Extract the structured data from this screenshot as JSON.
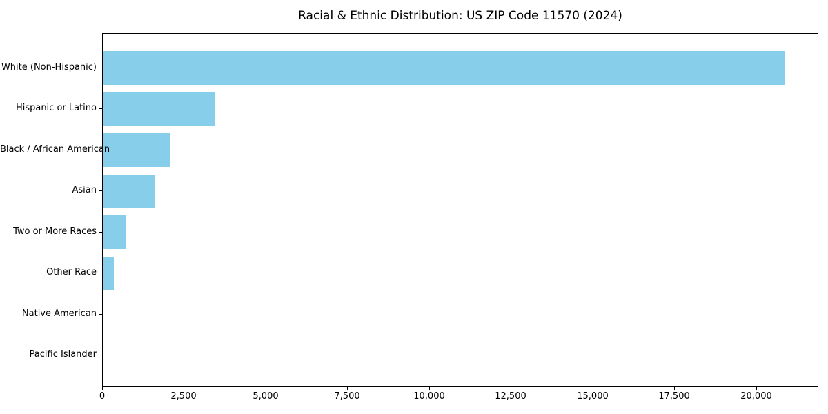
{
  "page": {
    "background_color": "#ffffff"
  },
  "chart_data": {
    "type": "bar",
    "orientation": "horizontal",
    "title": "Racial & Ethnic Distribution: US ZIP Code 11570 (2024)",
    "xlabel": "",
    "ylabel": "",
    "categories": [
      "White (Non-Hispanic)",
      "Hispanic or Latino",
      "Black / African American",
      "Asian",
      "Two or More Races",
      "Other Race",
      "Native American",
      "Pacific Islander"
    ],
    "values": [
      20850,
      3430,
      2060,
      1580,
      700,
      335,
      0,
      0
    ],
    "xlim": [
      0,
      21900
    ],
    "x_ticks": [
      0,
      2500,
      5000,
      7500,
      10000,
      12500,
      15000,
      17500,
      20000
    ],
    "x_tick_labels": [
      "0",
      "2,500",
      "5,000",
      "7,500",
      "10,000",
      "12,500",
      "15,000",
      "17,500",
      "20,000"
    ],
    "bar_color": "#87CEEB",
    "text_color": "#000000",
    "spine_color": "#000000",
    "grid": false,
    "legend": null
  }
}
